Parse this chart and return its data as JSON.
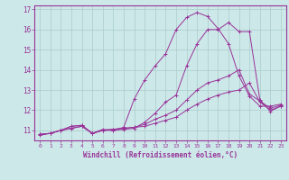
{
  "xlabel": "Windchill (Refroidissement éolien,°C)",
  "background_color": "#cce8e8",
  "grid_color": "#aacccc",
  "line_color": "#993399",
  "x_values": [
    0,
    1,
    2,
    3,
    4,
    5,
    6,
    7,
    8,
    9,
    10,
    11,
    12,
    13,
    14,
    15,
    16,
    17,
    18,
    19,
    20,
    21,
    22,
    23
  ],
  "series": [
    [
      10.8,
      10.85,
      11.0,
      11.1,
      11.2,
      10.85,
      11.0,
      11.05,
      11.1,
      11.15,
      11.2,
      11.35,
      11.5,
      11.65,
      12.0,
      12.3,
      12.55,
      12.75,
      12.9,
      13.0,
      13.35,
      12.4,
      12.0,
      12.2
    ],
    [
      10.8,
      10.85,
      11.0,
      11.1,
      11.2,
      10.85,
      11.0,
      11.05,
      11.1,
      11.15,
      11.3,
      11.55,
      11.75,
      12.0,
      12.5,
      13.0,
      13.35,
      13.5,
      13.7,
      14.0,
      12.8,
      12.45,
      12.1,
      12.25
    ],
    [
      10.8,
      10.85,
      11.0,
      11.2,
      11.25,
      10.85,
      11.0,
      11.0,
      11.05,
      11.1,
      11.4,
      11.85,
      12.4,
      12.75,
      14.2,
      15.3,
      16.0,
      16.0,
      16.35,
      15.9,
      15.9,
      12.5,
      11.95,
      12.2
    ],
    [
      10.75,
      10.85,
      11.0,
      11.2,
      11.25,
      10.85,
      11.05,
      11.0,
      11.15,
      12.55,
      13.5,
      14.2,
      14.8,
      16.0,
      16.6,
      16.85,
      16.65,
      16.05,
      15.3,
      13.7,
      12.7,
      12.2,
      12.2,
      12.3
    ]
  ],
  "ylim": [
    10.5,
    17.2
  ],
  "xlim": [
    -0.5,
    23.5
  ],
  "yticks": [
    11,
    12,
    13,
    14,
    15,
    16,
    17
  ],
  "xticks": [
    0,
    1,
    2,
    3,
    4,
    5,
    6,
    7,
    8,
    9,
    10,
    11,
    12,
    13,
    14,
    15,
    16,
    17,
    18,
    19,
    20,
    21,
    22,
    23
  ],
  "figsize": [
    3.2,
    2.0
  ],
  "dpi": 100
}
